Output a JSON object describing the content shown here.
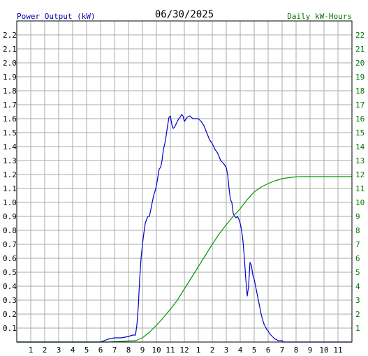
{
  "header": {
    "left_label": "Power Output (kW)",
    "date": "06/30/2025",
    "right_label": "Daily kW-Hours"
  },
  "colors": {
    "left_axis": "#0000aa",
    "right_axis": "#007700",
    "power_series": "#0000cc",
    "energy_series": "#009900",
    "grid": "#aaaaaa",
    "frame": "#000000"
  },
  "chart_data": {
    "type": "line",
    "x_label_ticks": [
      "1",
      "2",
      "3",
      "4",
      "5",
      "6",
      "7",
      "8",
      "9",
      "10",
      "11",
      "12",
      "1",
      "2",
      "3",
      "4",
      "5",
      "6",
      "7",
      "8",
      "9",
      "10",
      "11"
    ],
    "x_unit": "hour of day",
    "xlim": [
      0,
      24
    ],
    "y_left": {
      "label": "Power Output (kW)",
      "ylim": [
        0,
        2.3
      ],
      "ticks": [
        "0.1",
        "0.2",
        "0.3",
        "0.4",
        "0.5",
        "0.6",
        "0.7",
        "0.8",
        "0.9",
        "1.0",
        "1.1",
        "1.2",
        "1.3",
        "1.4",
        "1.5",
        "1.6",
        "1.7",
        "1.8",
        "1.9",
        "2.0",
        "2.1",
        "2.2"
      ]
    },
    "y_right": {
      "label": "Daily kW-Hours",
      "ylim": [
        0,
        23
      ],
      "ticks": [
        "1",
        "2",
        "3",
        "4",
        "5",
        "6",
        "7",
        "8",
        "9",
        "10",
        "11",
        "12",
        "13",
        "14",
        "15",
        "16",
        "17",
        "18",
        "19",
        "20",
        "21",
        "22"
      ]
    },
    "grid": true,
    "series": [
      {
        "name": "Power Output (kW)",
        "axis": "left",
        "x": [
          0,
          6.0,
          6.3,
          6.5,
          7.0,
          7.5,
          8.0,
          8.3,
          8.5,
          8.6,
          8.7,
          8.8,
          8.9,
          9.0,
          9.1,
          9.2,
          9.3,
          9.4,
          9.5,
          9.6,
          9.7,
          9.8,
          9.9,
          10.0,
          10.1,
          10.2,
          10.3,
          10.4,
          10.5,
          10.6,
          10.7,
          10.8,
          10.9,
          11.0,
          11.1,
          11.2,
          11.3,
          11.4,
          11.5,
          11.6,
          11.7,
          11.8,
          11.9,
          12.0,
          12.2,
          12.4,
          12.6,
          12.8,
          13.0,
          13.2,
          13.4,
          13.6,
          13.8,
          14.0,
          14.2,
          14.4,
          14.6,
          14.8,
          15.0,
          15.1,
          15.2,
          15.3,
          15.4,
          15.5,
          15.6,
          15.7,
          15.8,
          15.9,
          16.0,
          16.1,
          16.2,
          16.3,
          16.4,
          16.5,
          16.6,
          16.7,
          16.8,
          16.9,
          17.0,
          17.1,
          17.2,
          17.3,
          17.4,
          17.5,
          17.6,
          17.7,
          17.8,
          17.9,
          18.0,
          18.05,
          18.1,
          18.2,
          18.3,
          18.4,
          18.5,
          18.6,
          18.7,
          18.8,
          18.9,
          19.0,
          19.1,
          19.2,
          19.3,
          19.4,
          19.5,
          19.6,
          19.7,
          19.8,
          20.0,
          20.2,
          20.4,
          20.6,
          20.8,
          21.0,
          21.2,
          21.5,
          22.0,
          24.0
        ],
        "y": [
          0,
          0.0,
          0.01,
          0.02,
          0.03,
          0.03,
          0.04,
          0.05,
          0.05,
          0.12,
          0.25,
          0.45,
          0.6,
          0.7,
          0.78,
          0.85,
          0.88,
          0.9,
          0.9,
          0.95,
          1.0,
          1.05,
          1.08,
          1.12,
          1.18,
          1.24,
          1.25,
          1.3,
          1.38,
          1.42,
          1.48,
          1.55,
          1.61,
          1.62,
          1.56,
          1.53,
          1.54,
          1.56,
          1.58,
          1.6,
          1.61,
          1.63,
          1.62,
          1.58,
          1.61,
          1.62,
          1.6,
          1.6,
          1.6,
          1.58,
          1.55,
          1.5,
          1.45,
          1.42,
          1.38,
          1.35,
          1.3,
          1.28,
          1.25,
          1.2,
          1.1,
          1.02,
          1.0,
          0.92,
          0.9,
          0.89,
          0.9,
          0.88,
          0.85,
          0.8,
          0.72,
          0.6,
          0.45,
          0.33,
          0.4,
          0.57,
          0.55,
          0.48,
          0.45,
          0.4,
          0.35,
          0.3,
          0.25,
          0.2,
          0.16,
          0.13,
          0.11,
          0.09,
          0.08,
          0.07,
          0.06,
          0.05,
          0.04,
          0.03,
          0.02,
          0.02,
          0.01,
          0.01,
          0.01,
          0.01,
          0.0,
          0.0,
          0.0,
          0.0,
          0.0,
          0.0,
          0.0,
          0.0,
          0.0,
          0.0,
          0.0,
          0.0,
          0.0,
          0.0,
          0.0,
          0.0,
          0.0,
          0.0
        ]
      },
      {
        "name": "Daily kW-Hours",
        "axis": "right",
        "x": [
          0,
          6.5,
          7.5,
          8.5,
          9.0,
          9.5,
          10.0,
          10.5,
          11.0,
          11.5,
          12.0,
          12.5,
          13.0,
          13.5,
          14.0,
          14.5,
          15.0,
          15.5,
          16.0,
          16.5,
          17.0,
          17.5,
          18.0,
          18.5,
          19.0,
          19.5,
          20.0,
          20.5,
          21.0,
          24.0
        ],
        "y": [
          0,
          0.0,
          0.05,
          0.1,
          0.3,
          0.7,
          1.2,
          1.75,
          2.35,
          3.0,
          3.8,
          4.6,
          5.4,
          6.2,
          7.0,
          7.75,
          8.4,
          9.0,
          9.55,
          10.2,
          10.75,
          11.1,
          11.35,
          11.55,
          11.7,
          11.78,
          11.83,
          11.85,
          11.85,
          11.85
        ]
      }
    ]
  }
}
